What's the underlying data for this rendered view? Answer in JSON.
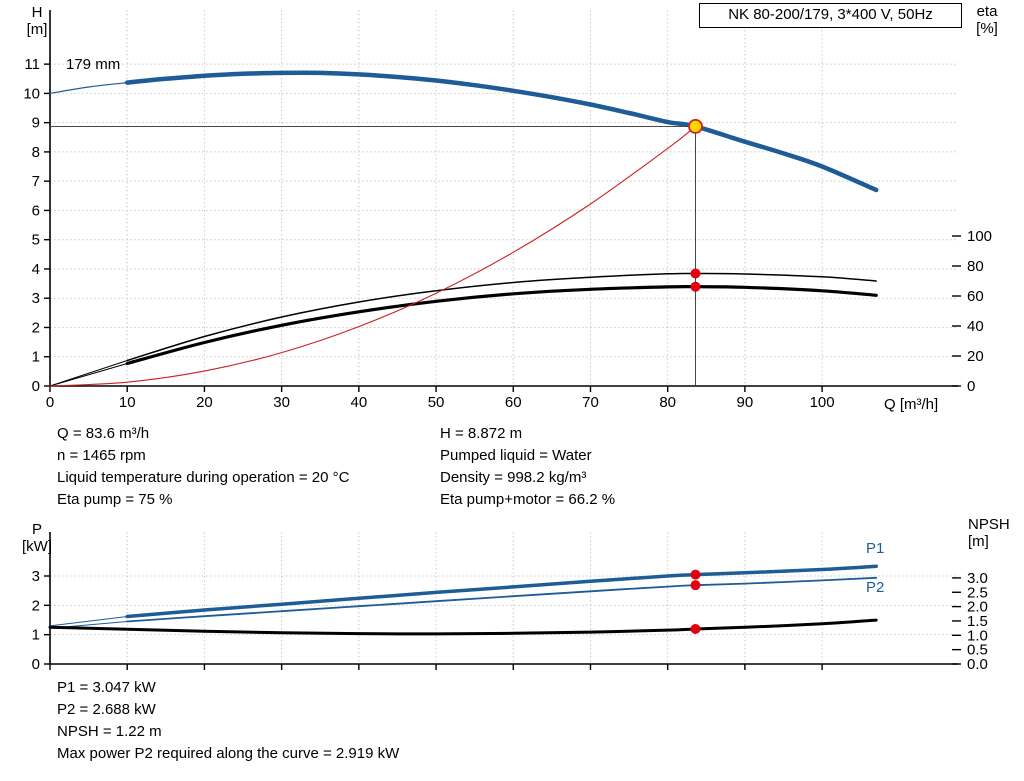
{
  "title_box": "NK 80-200/179, 3*400 V, 50Hz",
  "labels": {
    "h_axis": [
      "H",
      "[m]"
    ],
    "eta_axis": [
      "eta",
      "[%]"
    ],
    "q_axis": "Q [m³/h]",
    "p_axis": [
      "P",
      "[kW]"
    ],
    "npsh_axis": [
      "NPSH",
      "[m]"
    ],
    "impeller": "179 mm",
    "p1": "P1",
    "p2": "P2"
  },
  "colors": {
    "curve_blue": "#1d5c96",
    "curve_black": "#000000",
    "system_red": "#cc2222",
    "dot_red": "#e3000f",
    "duty_yellow": "#ffd500",
    "grid_gray": "#c8c8c8"
  },
  "duty_info_left": [
    "Q = 83.6 m³/h",
    "n = 1465 rpm",
    "Liquid temperature during operation = 20 °C",
    "Eta pump = 75 %"
  ],
  "duty_info_right": [
    "H = 8.872 m",
    "Pumped liquid = Water",
    "Density = 998.2 kg/m³",
    "Eta pump+motor = 66.2 %"
  ],
  "power_info": [
    "P1 = 3.047 kW",
    "P2 = 2.688 kW",
    "NPSH = 1.22 m",
    "Max power P2 required along the curve = 2.919 kW"
  ],
  "chart_data": [
    {
      "type": "line",
      "title": "NK 80-200/179, 3*400 V, 50Hz",
      "xlabel": "Q [m³/h]",
      "ylabel_left": "H [m]",
      "ylabel_right": "eta [%]",
      "xlim": [
        0,
        117.6
      ],
      "ylim_left": [
        0,
        12.85
      ],
      "ylim_right": [
        0,
        250.7
      ],
      "grid": true,
      "x_ticks": [
        0,
        10,
        20,
        30,
        40,
        50,
        60,
        70,
        80,
        90,
        100
      ],
      "x_tick_labels": [
        "0",
        "10",
        "20",
        "30",
        "40",
        "50",
        "60",
        "70",
        "80",
        "90",
        "100"
      ],
      "y_ticks_left": [
        0,
        1,
        2,
        3,
        4,
        5,
        6,
        7,
        8,
        9,
        10,
        11
      ],
      "y_tick_labels_left": [
        "0",
        "1",
        "2",
        "3",
        "4",
        "5",
        "6",
        "7",
        "8",
        "9",
        "10",
        "11"
      ],
      "y_ticks_right": [
        0,
        20,
        40,
        60,
        80,
        100
      ],
      "y_tick_labels_right": [
        "0",
        "20",
        "40",
        "60",
        "80",
        "100"
      ],
      "series": [
        {
          "name": "head-lead",
          "axis": "left",
          "color": "#1d5c96",
          "width": 1.2,
          "x": [
            0,
            5,
            10
          ],
          "y": [
            10.0,
            10.22,
            10.37
          ]
        },
        {
          "name": "head-179mm",
          "axis": "left",
          "color": "#1d5c96",
          "width": 4.5,
          "x": [
            10,
            15,
            20,
            25,
            30,
            35,
            40,
            45,
            50,
            55,
            60,
            65,
            70,
            75,
            80,
            83.6,
            90,
            95,
            100,
            107
          ],
          "y": [
            10.37,
            10.5,
            10.6,
            10.67,
            10.7,
            10.7,
            10.65,
            10.56,
            10.44,
            10.28,
            10.09,
            9.87,
            9.62,
            9.33,
            9.02,
            8.872,
            8.35,
            7.95,
            7.5,
            6.7
          ]
        },
        {
          "name": "eta-pump-lead",
          "axis": "right",
          "color": "#000000",
          "width": 1,
          "x": [
            0,
            10
          ],
          "y": [
            0,
            17
          ]
        },
        {
          "name": "eta-pump",
          "axis": "right",
          "color": "#000000",
          "width": 1.5,
          "x": [
            10,
            20,
            30,
            40,
            50,
            60,
            70,
            80,
            83.6,
            90,
            100,
            107
          ],
          "y": [
            17,
            33,
            46,
            56,
            63.5,
            69,
            72.5,
            74.8,
            75,
            74.7,
            72.8,
            70
          ]
        },
        {
          "name": "eta-pump-motor-lead",
          "axis": "right",
          "color": "#000000",
          "width": 1,
          "x": [
            0,
            10
          ],
          "y": [
            0,
            15
          ]
        },
        {
          "name": "eta-pump-motor",
          "axis": "right",
          "color": "#000000",
          "width": 3.2,
          "x": [
            10,
            20,
            30,
            40,
            50,
            60,
            70,
            80,
            83.6,
            90,
            100,
            107
          ],
          "y": [
            15,
            29,
            40.5,
            49.5,
            56.5,
            61.5,
            64.5,
            66.1,
            66.2,
            65.8,
            63.5,
            60.5
          ]
        },
        {
          "name": "system-curve",
          "axis": "left",
          "color": "#cc2222",
          "width": 1.1,
          "x": [
            0,
            10,
            20,
            30,
            40,
            50,
            60,
            70,
            80,
            83.6
          ],
          "y": [
            0,
            0.13,
            0.51,
            1.14,
            2.03,
            3.17,
            4.57,
            6.22,
            8.12,
            8.872
          ]
        }
      ],
      "crosshair": {
        "x": 83.6,
        "y": 8.872
      },
      "markers": [
        {
          "x": 83.6,
          "y": 75,
          "axis": "right",
          "fill": "#e3000f",
          "r": 5
        },
        {
          "x": 83.6,
          "y": 66.2,
          "axis": "right",
          "fill": "#e3000f",
          "r": 5
        },
        {
          "x": 83.6,
          "y": 8.872,
          "axis": "left",
          "fill": "#ffd500",
          "stroke": "#cc2222",
          "r": 6.5,
          "duty": true
        }
      ],
      "duty_point": {
        "Q": 83.6,
        "H": 8.872,
        "eta_pump_pct": 75,
        "eta_pump_motor_pct": 66.2
      }
    },
    {
      "type": "line",
      "ylabel_left": "P [kW]",
      "ylabel_right": "NPSH [m]",
      "xlim": [
        0,
        117.6
      ],
      "ylim_left": [
        0,
        4.5
      ],
      "ylim_right": [
        0,
        4.6
      ],
      "grid": true,
      "x_ticks": [
        0,
        10,
        20,
        30,
        40,
        50,
        60,
        70,
        80,
        90,
        100
      ],
      "y_ticks_left": [
        0,
        1,
        2,
        3
      ],
      "y_tick_labels_left": [
        "0",
        "1",
        "2",
        "3"
      ],
      "y_ticks_right": [
        0,
        0.5,
        1,
        1.5,
        2,
        2.5,
        3
      ],
      "y_tick_labels_right": [
        "0.0",
        "0.5",
        "1.0",
        "1.5",
        "2.0",
        "2.5",
        "3.0"
      ],
      "series": [
        {
          "name": "p1-lead",
          "axis": "left",
          "color": "#1d5c96",
          "width": 1,
          "x": [
            0,
            10
          ],
          "y": [
            1.3,
            1.62
          ]
        },
        {
          "name": "p2-lead",
          "axis": "left",
          "color": "#1d5c96",
          "width": 1,
          "x": [
            0,
            10
          ],
          "y": [
            1.22,
            1.45
          ]
        },
        {
          "name": "p1",
          "axis": "left",
          "color": "#1d5c96",
          "width": 3.5,
          "x": [
            10,
            20,
            30,
            40,
            50,
            60,
            70,
            80,
            83.6,
            90,
            100,
            107
          ],
          "y": [
            1.62,
            1.84,
            2.04,
            2.24,
            2.44,
            2.63,
            2.82,
            3.0,
            3.047,
            3.11,
            3.22,
            3.33
          ]
        },
        {
          "name": "p2",
          "axis": "left",
          "color": "#1d5c96",
          "width": 1.8,
          "x": [
            10,
            20,
            30,
            40,
            50,
            60,
            70,
            80,
            83.6,
            90,
            100,
            107
          ],
          "y": [
            1.45,
            1.63,
            1.8,
            1.97,
            2.14,
            2.31,
            2.48,
            2.64,
            2.688,
            2.74,
            2.85,
            2.94
          ]
        },
        {
          "name": "npsh",
          "axis": "right",
          "color": "#000000",
          "width": 3,
          "x": [
            0,
            10,
            20,
            30,
            40,
            50,
            60,
            70,
            80,
            83.6,
            90,
            100,
            107
          ],
          "y": [
            1.28,
            1.21,
            1.14,
            1.09,
            1.06,
            1.05,
            1.07,
            1.11,
            1.18,
            1.22,
            1.28,
            1.4,
            1.53
          ]
        }
      ],
      "markers": [
        {
          "x": 83.6,
          "y": 3.047,
          "axis": "left",
          "fill": "#e3000f",
          "r": 5
        },
        {
          "x": 83.6,
          "y": 2.688,
          "axis": "left",
          "fill": "#e3000f",
          "r": 5
        },
        {
          "x": 83.6,
          "y": 1.22,
          "axis": "right",
          "fill": "#e3000f",
          "r": 5
        }
      ],
      "duty_point": {
        "Q": 83.6,
        "P1_kW": 3.047,
        "P2_kW": 2.688,
        "NPSH_m": 1.22
      }
    }
  ]
}
